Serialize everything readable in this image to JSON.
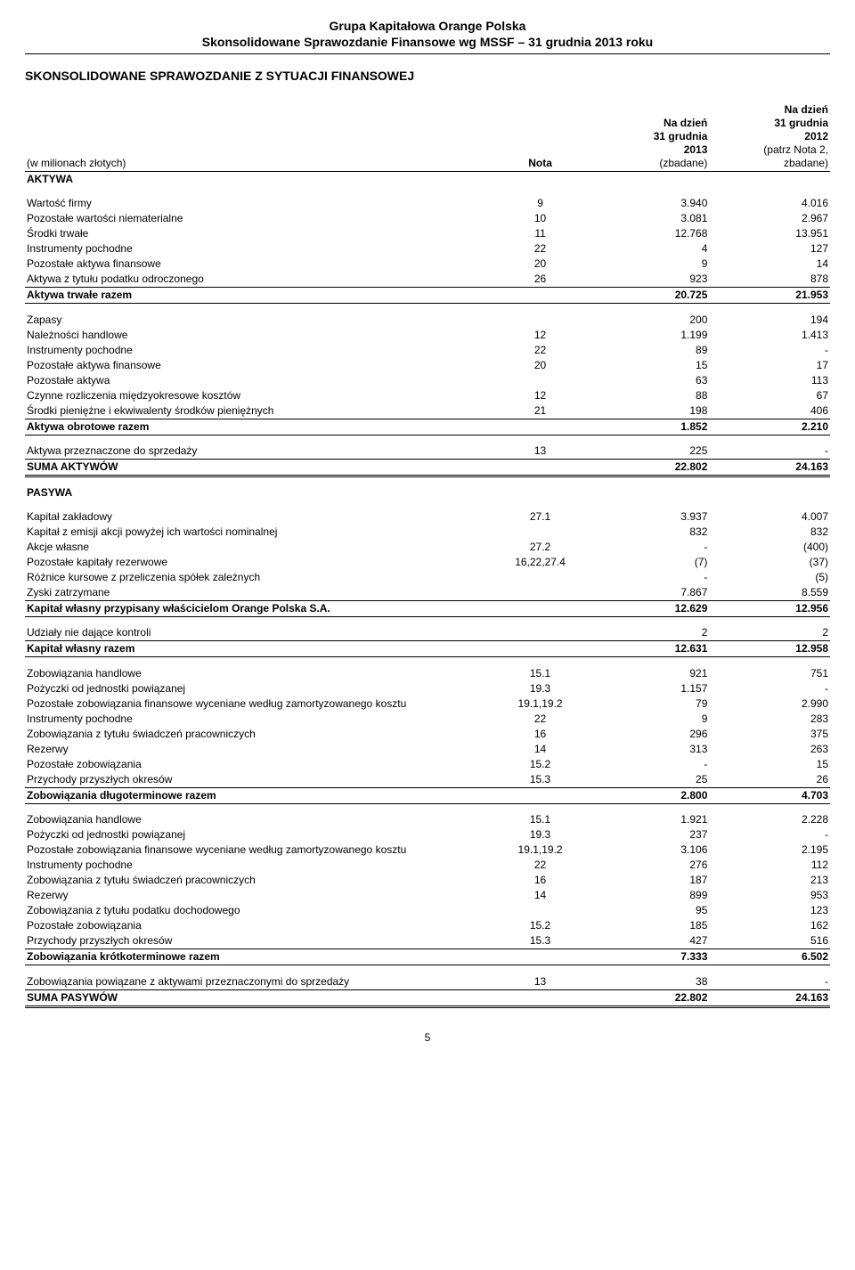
{
  "header": {
    "line1": "Grupa Kapitałowa Orange Polska",
    "line2": "Skonsolidowane Sprawozdanie Finansowe wg MSSF – 31 grudnia 2013 roku"
  },
  "title": "SKONSOLIDOWANE SPRAWOZDANIE Z SYTUACJI FINANSOWEJ",
  "columns": {
    "units": "(w milionach złotych)",
    "nota": "Nota",
    "col1_l1": "Na dzień",
    "col1_l2": "31 grudnia",
    "col1_l3": "2013",
    "col1_l4": "(zbadane)",
    "col2_l1": "Na dzień",
    "col2_l2": "31 grudnia",
    "col2_l3": "2012",
    "col2_l4": "(patrz Nota 2,",
    "col2_l5": "zbadane)"
  },
  "section": {
    "aktywa": "AKTYWA",
    "pasywa": "PASYWA"
  },
  "rows": {
    "r01": {
      "label": "Wartość firmy",
      "nota": "9",
      "v1": "3.940",
      "v2": "4.016"
    },
    "r02": {
      "label": "Pozostałe wartości niematerialne",
      "nota": "10",
      "v1": "3.081",
      "v2": "2.967"
    },
    "r03": {
      "label": "Środki trwałe",
      "nota": "11",
      "v1": "12.768",
      "v2": "13.951"
    },
    "r04": {
      "label": "Instrumenty pochodne",
      "nota": "22",
      "v1": "4",
      "v2": "127"
    },
    "r05": {
      "label": "Pozostałe aktywa finansowe",
      "nota": "20",
      "v1": "9",
      "v2": "14"
    },
    "r06": {
      "label": "Aktywa z tytułu podatku odroczonego",
      "nota": "26",
      "v1": "923",
      "v2": "878"
    },
    "r07": {
      "label": "Aktywa trwałe razem",
      "nota": "",
      "v1": "20.725",
      "v2": "21.953"
    },
    "r08": {
      "label": "Zapasy",
      "nota": "",
      "v1": "200",
      "v2": "194"
    },
    "r09": {
      "label": "Należności handlowe",
      "nota": "12",
      "v1": "1.199",
      "v2": "1.413"
    },
    "r10": {
      "label": "Instrumenty pochodne",
      "nota": "22",
      "v1": "89",
      "v2": "-"
    },
    "r11": {
      "label": "Pozostałe aktywa finansowe",
      "nota": "20",
      "v1": "15",
      "v2": "17"
    },
    "r12": {
      "label": "Pozostałe aktywa",
      "nota": "",
      "v1": "63",
      "v2": "113"
    },
    "r13": {
      "label": "Czynne rozliczenia międzyokresowe kosztów",
      "nota": "12",
      "v1": "88",
      "v2": "67"
    },
    "r14": {
      "label": "Środki pieniężne i ekwiwalenty środków pieniężnych",
      "nota": "21",
      "v1": "198",
      "v2": "406"
    },
    "r15": {
      "label": "Aktywa obrotowe razem",
      "nota": "",
      "v1": "1.852",
      "v2": "2.210"
    },
    "r16": {
      "label": "Aktywa przeznaczone do sprzedaży",
      "nota": "13",
      "v1": "225",
      "v2": "-"
    },
    "r17": {
      "label": "SUMA AKTYWÓW",
      "nota": "",
      "v1": "22.802",
      "v2": "24.163"
    },
    "r18": {
      "label": "Kapitał zakładowy",
      "nota": "27.1",
      "v1": "3.937",
      "v2": "4.007"
    },
    "r19": {
      "label": "Kapitał z emisji akcji powyżej ich wartości nominalnej",
      "nota": "",
      "v1": "832",
      "v2": "832"
    },
    "r20": {
      "label": "Akcje własne",
      "nota": "27.2",
      "v1": "-",
      "v2": "(400)"
    },
    "r21": {
      "label": "Pozostałe kapitały rezerwowe",
      "nota": "16,22,27.4",
      "v1": "(7)",
      "v2": "(37)"
    },
    "r22": {
      "label": "Różnice kursowe z przeliczenia spółek zależnych",
      "nota": "",
      "v1": "-",
      "v2": "(5)"
    },
    "r23": {
      "label": "Zyski zatrzymane",
      "nota": "",
      "v1": "7.867",
      "v2": "8.559"
    },
    "r24": {
      "label": "Kapitał własny przypisany właścicielom Orange Polska S.A.",
      "nota": "",
      "v1": "12.629",
      "v2": "12.956"
    },
    "r25": {
      "label": "Udziały nie dające kontroli",
      "nota": "",
      "v1": "2",
      "v2": "2"
    },
    "r26": {
      "label": "Kapitał własny razem",
      "nota": "",
      "v1": "12.631",
      "v2": "12.958"
    },
    "r27": {
      "label": "Zobowiązania handlowe",
      "nota": "15.1",
      "v1": "921",
      "v2": "751"
    },
    "r28": {
      "label": "Pożyczki od jednostki powiązanej",
      "nota": "19.3",
      "v1": "1.157",
      "v2": "-"
    },
    "r29": {
      "label": "Pozostałe zobowiązania finansowe wyceniane według zamortyzowanego kosztu",
      "nota": "19.1,19.2",
      "v1": "79",
      "v2": "2.990"
    },
    "r30": {
      "label": "Instrumenty pochodne",
      "nota": "22",
      "v1": "9",
      "v2": "283"
    },
    "r31": {
      "label": "Zobowiązania z tytułu świadczeń pracowniczych",
      "nota": "16",
      "v1": "296",
      "v2": "375"
    },
    "r32": {
      "label": "Rezerwy",
      "nota": "14",
      "v1": "313",
      "v2": "263"
    },
    "r33": {
      "label": "Pozostałe zobowiązania",
      "nota": "15.2",
      "v1": "-",
      "v2": "15"
    },
    "r34": {
      "label": "Przychody przyszłych okresów",
      "nota": "15.3",
      "v1": "25",
      "v2": "26"
    },
    "r35": {
      "label": "Zobowiązania długoterminowe razem",
      "nota": "",
      "v1": "2.800",
      "v2": "4.703"
    },
    "r36": {
      "label": "Zobowiązania handlowe",
      "nota": "15.1",
      "v1": "1.921",
      "v2": "2.228"
    },
    "r37": {
      "label": "Pożyczki od jednostki powiązanej",
      "nota": "19.3",
      "v1": "237",
      "v2": "-"
    },
    "r38": {
      "label": "Pozostałe zobowiązania finansowe wyceniane według zamortyzowanego kosztu",
      "nota": "19.1,19.2",
      "v1": "3.106",
      "v2": "2.195"
    },
    "r39": {
      "label": "Instrumenty pochodne",
      "nota": "22",
      "v1": "276",
      "v2": "112"
    },
    "r40": {
      "label": "Zobowiązania z tytułu świadczeń pracowniczych",
      "nota": "16",
      "v1": "187",
      "v2": "213"
    },
    "r41": {
      "label": "Rezerwy",
      "nota": "14",
      "v1": "899",
      "v2": "953"
    },
    "r42": {
      "label": "Zobowiązania z tytułu podatku dochodowego",
      "nota": "",
      "v1": "95",
      "v2": "123"
    },
    "r43": {
      "label": "Pozostałe zobowiązania",
      "nota": "15.2",
      "v1": "185",
      "v2": "162"
    },
    "r44": {
      "label": "Przychody przyszłych okresów",
      "nota": "15.3",
      "v1": "427",
      "v2": "516"
    },
    "r45": {
      "label": "Zobowiązania krótkoterminowe razem",
      "nota": "",
      "v1": "7.333",
      "v2": "6.502"
    },
    "r46": {
      "label": "Zobowiązania powiązane z aktywami przeznaczonymi do sprzedaży",
      "nota": "13",
      "v1": "38",
      "v2": "-"
    },
    "r47": {
      "label": "SUMA PASYWÓW",
      "nota": "",
      "v1": "22.802",
      "v2": "24.163"
    }
  },
  "page_number": "5"
}
